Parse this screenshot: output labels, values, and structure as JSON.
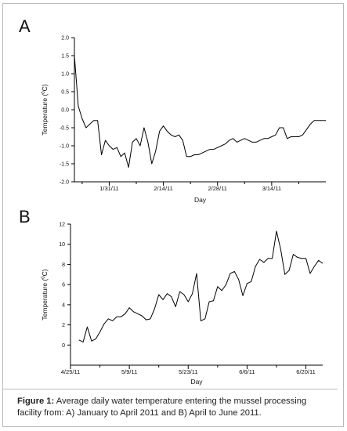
{
  "panel_a_letter": "A",
  "panel_b_letter": "B",
  "caption": {
    "label": "Figure 1:",
    "text": " Average daily water temperature entering the mussel processing facility from: A) January to April 2011 and B) April to June 2011."
  },
  "chart_data": [
    {
      "type": "line",
      "panel": "A",
      "title": "",
      "xlabel": "Day",
      "ylabel": "Temperature (°C)",
      "ylabel_text": "Temperature (",
      "ylabel_sup": "0",
      "ylabel_unit": "C)",
      "ylim": [
        -2.0,
        2.0
      ],
      "yticks": [
        2.0,
        1.5,
        1.0,
        0.5,
        0.0,
        -0.5,
        -1.0,
        -1.5,
        -2.0
      ],
      "ytick_labels": [
        "2.0",
        "1.5",
        "1.0",
        "0.5",
        "0.0",
        "-0.5",
        "-1.0",
        "-1.5",
        "-2.0"
      ],
      "xlim": [
        "2011-01-22",
        "2011-03-28"
      ],
      "xticks": [
        "2011-01-31",
        "2011-02-14",
        "2011-02-28",
        "2011-03-14"
      ],
      "xtick_labels": [
        "1/31/11",
        "2/14/11",
        "2/28/11",
        "3/14/11"
      ],
      "minor_xticks": [
        "2011-01-24",
        "2011-02-07",
        "2011-02-21",
        "2011-03-07",
        "2011-03-21"
      ],
      "color": "#000000",
      "series": [
        {
          "x": [
            "2011-01-22",
            "2011-01-23",
            "2011-01-24",
            "2011-01-25",
            "2011-01-26",
            "2011-01-27",
            "2011-01-28",
            "2011-01-29",
            "2011-01-30",
            "2011-01-31",
            "2011-02-01",
            "2011-02-02",
            "2011-02-03",
            "2011-02-04",
            "2011-02-05",
            "2011-02-06",
            "2011-02-07",
            "2011-02-08",
            "2011-02-09",
            "2011-02-10",
            "2011-02-11",
            "2011-02-12",
            "2011-02-13",
            "2011-02-14",
            "2011-02-15",
            "2011-02-16",
            "2011-02-17",
            "2011-02-18",
            "2011-02-19",
            "2011-02-20",
            "2011-02-21",
            "2011-02-22",
            "2011-02-23",
            "2011-02-24",
            "2011-02-25",
            "2011-02-26",
            "2011-02-27",
            "2011-02-28",
            "2011-03-01",
            "2011-03-02",
            "2011-03-03",
            "2011-03-04",
            "2011-03-05",
            "2011-03-06",
            "2011-03-07",
            "2011-03-08",
            "2011-03-09",
            "2011-03-10",
            "2011-03-11",
            "2011-03-12",
            "2011-03-13",
            "2011-03-14",
            "2011-03-15",
            "2011-03-16",
            "2011-03-17",
            "2011-03-18",
            "2011-03-19",
            "2011-03-20",
            "2011-03-21",
            "2011-03-22",
            "2011-03-23",
            "2011-03-24",
            "2011-03-25",
            "2011-03-26",
            "2011-03-27",
            "2011-03-28"
          ],
          "y": [
            1.5,
            0.1,
            -0.25,
            -0.5,
            -0.4,
            -0.3,
            -0.3,
            -1.25,
            -0.85,
            -1.0,
            -1.1,
            -1.05,
            -1.3,
            -1.2,
            -1.6,
            -0.9,
            -0.8,
            -1.0,
            -0.5,
            -0.9,
            -1.5,
            -1.15,
            -0.6,
            -0.45,
            -0.6,
            -0.7,
            -0.75,
            -0.7,
            -0.85,
            -1.3,
            -1.3,
            -1.25,
            -1.25,
            -1.2,
            -1.15,
            -1.1,
            -1.1,
            -1.05,
            -1.0,
            -0.95,
            -0.85,
            -0.8,
            -0.9,
            -0.85,
            -0.8,
            -0.85,
            -0.9,
            -0.9,
            -0.85,
            -0.8,
            -0.8,
            -0.75,
            -0.7,
            -0.5,
            -0.5,
            -0.8,
            -0.75,
            -0.75,
            -0.75,
            -0.7,
            -0.55,
            -0.4,
            -0.3,
            -0.3,
            -0.3,
            -0.3
          ]
        }
      ]
    },
    {
      "type": "line",
      "panel": "B",
      "title": "",
      "xlabel": "Day",
      "ylabel": "Temperature (°C)",
      "ylabel_text": "Temperature (",
      "ylabel_sup": "0",
      "ylabel_unit": "C)",
      "ylim": [
        -2,
        12
      ],
      "yticks": [
        12,
        10,
        8,
        6,
        4,
        2,
        0
      ],
      "ytick_labels": [
        "12",
        "10",
        "8",
        "6",
        "4",
        "2",
        "0"
      ],
      "xlim": [
        "2011-04-25",
        "2011-06-24"
      ],
      "xticks": [
        "2011-04-25",
        "2011-05-09",
        "2011-05-23",
        "2011-06-06",
        "2011-06-20"
      ],
      "xtick_labels": [
        "4/25/11",
        "5/9/11",
        "5/23/11",
        "6/6/11",
        "6/20/11"
      ],
      "minor_xticks": [
        "2011-05-02",
        "2011-05-16",
        "2011-05-30",
        "2011-06-13"
      ],
      "color": "#000000",
      "series": [
        {
          "x": [
            "2011-04-27",
            "2011-04-28",
            "2011-04-29",
            "2011-04-30",
            "2011-05-01",
            "2011-05-02",
            "2011-05-03",
            "2011-05-04",
            "2011-05-05",
            "2011-05-06",
            "2011-05-07",
            "2011-05-08",
            "2011-05-09",
            "2011-05-10",
            "2011-05-11",
            "2011-05-12",
            "2011-05-13",
            "2011-05-14",
            "2011-05-15",
            "2011-05-16",
            "2011-05-17",
            "2011-05-18",
            "2011-05-19",
            "2011-05-20",
            "2011-05-21",
            "2011-05-22",
            "2011-05-23",
            "2011-05-24",
            "2011-05-25",
            "2011-05-26",
            "2011-05-27",
            "2011-05-28",
            "2011-05-29",
            "2011-05-30",
            "2011-05-31",
            "2011-06-01",
            "2011-06-02",
            "2011-06-03",
            "2011-06-04",
            "2011-06-05",
            "2011-06-06",
            "2011-06-07",
            "2011-06-08",
            "2011-06-09",
            "2011-06-10",
            "2011-06-11",
            "2011-06-12",
            "2011-06-13",
            "2011-06-14",
            "2011-06-15",
            "2011-06-16",
            "2011-06-17",
            "2011-06-18",
            "2011-06-19",
            "2011-06-20",
            "2011-06-21",
            "2011-06-22",
            "2011-06-23",
            "2011-06-24"
          ],
          "y": [
            0.5,
            0.3,
            1.8,
            0.4,
            0.6,
            1.3,
            2.1,
            2.6,
            2.4,
            2.8,
            2.8,
            3.1,
            3.7,
            3.3,
            3.1,
            2.9,
            2.5,
            2.6,
            3.6,
            5.0,
            4.5,
            5.1,
            4.8,
            3.8,
            5.3,
            5.0,
            4.3,
            5.1,
            7.1,
            2.4,
            2.6,
            4.3,
            4.4,
            5.8,
            5.4,
            6.0,
            7.1,
            7.3,
            6.5,
            4.9,
            6.1,
            6.3,
            7.8,
            8.5,
            8.2,
            8.6,
            8.6,
            11.3,
            9.5,
            7.0,
            7.4,
            9.0,
            8.7,
            8.6,
            8.6,
            7.1,
            7.8,
            8.4,
            8.1
          ]
        }
      ]
    }
  ]
}
